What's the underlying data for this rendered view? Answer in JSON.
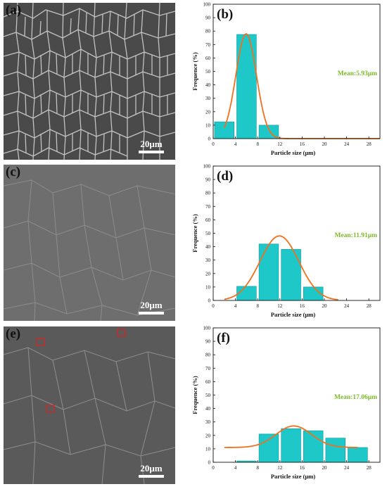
{
  "panels": {
    "a": {
      "letter": "(a)",
      "scale": "20μm"
    },
    "c": {
      "letter": "(c)",
      "scale": "20μm"
    },
    "e": {
      "letter": "(e)",
      "scale": "20μm"
    }
  },
  "colors": {
    "bar": "#1fc8c8",
    "bar_edge": "#0a9a9a",
    "curve": "#f07020",
    "mean": "#7cbb2a",
    "marker": "#e02020"
  },
  "chart_data": [
    {
      "id": "b",
      "type": "bar",
      "letter": "(b)",
      "xlabel": "Particle size (μm)",
      "ylabel": "Frequence (%)",
      "xlim": [
        0,
        30
      ],
      "ylim": [
        0,
        100
      ],
      "xticks": [
        0,
        4,
        8,
        12,
        16,
        20,
        24,
        28
      ],
      "yticks": [
        0,
        10,
        20,
        30,
        40,
        50,
        60,
        70,
        80,
        90,
        100
      ],
      "bin_width": 4,
      "bins": [
        {
          "x": 2,
          "value": 12.5
        },
        {
          "x": 6,
          "value": 77.5
        },
        {
          "x": 10,
          "value": 10
        }
      ],
      "fit": {
        "type": "gaussian",
        "center": 5.93,
        "sigma": 1.85,
        "amplitude": 78,
        "offset": 0,
        "x_range": [
          2,
          30
        ]
      },
      "mean_label": "Mean:5.93μm"
    },
    {
      "id": "d",
      "type": "bar",
      "letter": "(d)",
      "xlabel": "Particle size (μm)",
      "ylabel": "Frequence (%)",
      "xlim": [
        0,
        30
      ],
      "ylim": [
        0,
        100
      ],
      "xticks": [
        0,
        4,
        8,
        12,
        16,
        20,
        24,
        28
      ],
      "yticks": [
        0,
        10,
        20,
        30,
        40,
        50,
        60,
        70,
        80,
        90,
        100
      ],
      "bin_width": 4,
      "bins": [
        {
          "x": 6,
          "value": 10.5
        },
        {
          "x": 10,
          "value": 42
        },
        {
          "x": 14,
          "value": 38
        },
        {
          "x": 18,
          "value": 10
        }
      ],
      "fit": {
        "type": "gaussian",
        "center": 11.91,
        "sigma": 3.5,
        "amplitude": 48,
        "offset": 0,
        "x_range": [
          2,
          22.5
        ]
      },
      "mean_label": "Mean:11.91μm"
    },
    {
      "id": "f",
      "type": "bar",
      "letter": "(f)",
      "xlabel": "Particle size (μm)",
      "ylabel": "Frequence (%)",
      "xlim": [
        0,
        30
      ],
      "ylim": [
        0,
        100
      ],
      "xticks": [
        0,
        4,
        8,
        12,
        16,
        20,
        24,
        28
      ],
      "yticks": [
        0,
        10,
        20,
        30,
        40,
        50,
        60,
        70,
        80,
        90,
        100
      ],
      "bin_width": 4,
      "bins": [
        {
          "x": 6,
          "value": 1
        },
        {
          "x": 10,
          "value": 21
        },
        {
          "x": 14,
          "value": 25
        },
        {
          "x": 18,
          "value": 23.5
        },
        {
          "x": 22,
          "value": 18
        },
        {
          "x": 26,
          "value": 11
        }
      ],
      "fit": {
        "type": "gaussian",
        "center": 14.5,
        "sigma": 3.2,
        "amplitude": 16,
        "offset": 11,
        "x_range": [
          2,
          26
        ]
      },
      "mean_label": "Mean:17.06μm"
    }
  ]
}
